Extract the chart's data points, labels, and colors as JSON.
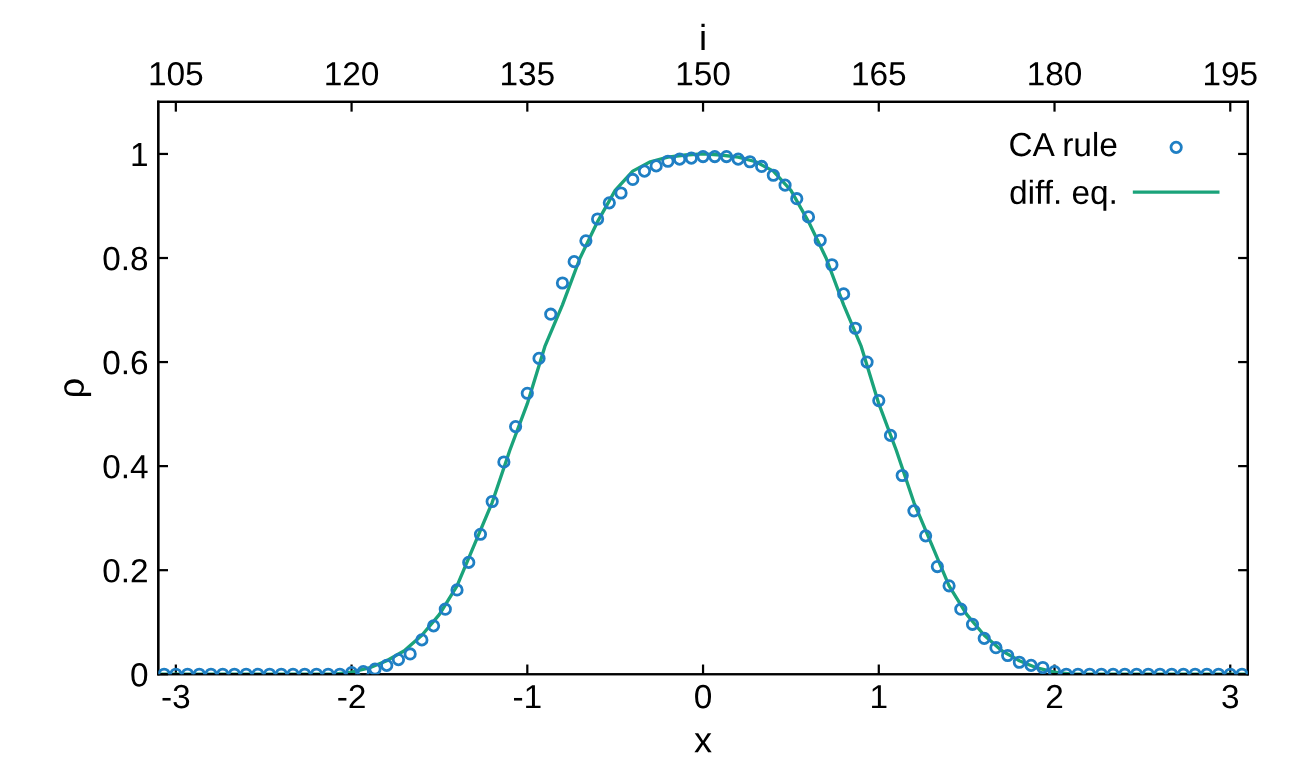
{
  "chart_data": {
    "type": "scatter",
    "xlabel": "x",
    "ylabel": "ρ",
    "x2label": "i",
    "xlim": [
      -3.1,
      3.1
    ],
    "xticks": [
      -3,
      -2,
      -1,
      0,
      1,
      2,
      3
    ],
    "x2lim": [
      103.5,
      196.5
    ],
    "x2ticks": [
      105,
      120,
      135,
      150,
      165,
      180,
      195
    ],
    "ylim": [
      0,
      1.1
    ],
    "yticks": [
      0,
      0.2,
      0.4,
      0.6,
      0.8,
      1
    ],
    "grid": false,
    "legend": "top right",
    "series": [
      {
        "name": "CA rule",
        "marker": "circle",
        "axis": "x2",
        "color": "#1f7fc4",
        "x": [
          104,
          105,
          106,
          107,
          108,
          109,
          110,
          111,
          112,
          113,
          114,
          115,
          116,
          117,
          118,
          119,
          120,
          121,
          122,
          123,
          124,
          125,
          126,
          127,
          128,
          129,
          130,
          131,
          132,
          133,
          134,
          135,
          136,
          137,
          138,
          139,
          140,
          141,
          142,
          143,
          144,
          145,
          146,
          147,
          148,
          149,
          150,
          151,
          152,
          153,
          154,
          155,
          156,
          157,
          158,
          159,
          160,
          161,
          162,
          163,
          164,
          165,
          166,
          167,
          168,
          169,
          170,
          171,
          172,
          173,
          174,
          175,
          176,
          177,
          178,
          179,
          180,
          181,
          182,
          183,
          184,
          185,
          186,
          187,
          188,
          189,
          190,
          191,
          192,
          193,
          194,
          195,
          196
        ],
        "values": [
          0,
          0,
          0,
          0,
          0,
          0,
          0,
          0,
          0,
          0,
          0,
          0,
          0,
          0,
          0,
          0,
          0.003,
          0.005,
          0.01,
          0.017,
          0.028,
          0.039,
          0.066,
          0.093,
          0.125,
          0.162,
          0.215,
          0.269,
          0.332,
          0.408,
          0.476,
          0.54,
          0.607,
          0.692,
          0.752,
          0.793,
          0.833,
          0.875,
          0.906,
          0.925,
          0.951,
          0.967,
          0.977,
          0.986,
          0.99,
          0.992,
          0.995,
          0.995,
          0.995,
          0.99,
          0.985,
          0.976,
          0.959,
          0.94,
          0.914,
          0.879,
          0.834,
          0.787,
          0.731,
          0.665,
          0.6,
          0.526,
          0.459,
          0.382,
          0.314,
          0.266,
          0.207,
          0.17,
          0.125,
          0.096,
          0.069,
          0.051,
          0.036,
          0.023,
          0.017,
          0.013,
          0.005,
          0,
          0,
          0,
          0,
          0,
          0,
          0,
          0,
          0,
          0,
          0,
          0,
          0,
          0,
          0,
          0
        ]
      },
      {
        "name": "diff. eq.",
        "type": "line",
        "marker": "none",
        "line_style": "solid",
        "color": "#1aa37a",
        "x": [
          -3.1,
          -2.5,
          -2.1,
          -2.0,
          -1.9,
          -1.8,
          -1.7,
          -1.6,
          -1.5,
          -1.4,
          -1.3,
          -1.2,
          -1.1,
          -1.0,
          -0.9,
          -0.8,
          -0.7,
          -0.6,
          -0.5,
          -0.4,
          -0.3,
          -0.2,
          -0.1,
          0,
          0.1,
          0.2,
          0.3,
          0.4,
          0.5,
          0.6,
          0.7,
          0.8,
          0.9,
          1.0,
          1.1,
          1.2,
          1.3,
          1.4,
          1.5,
          1.6,
          1.7,
          1.8,
          1.9,
          2.0,
          2.1,
          2.5,
          3.1
        ],
        "values": [
          0,
          0,
          0,
          0.004,
          0.012,
          0.026,
          0.045,
          0.075,
          0.115,
          0.17,
          0.25,
          0.33,
          0.43,
          0.52,
          0.63,
          0.71,
          0.8,
          0.87,
          0.93,
          0.967,
          0.985,
          0.994,
          0.998,
          1.0,
          0.998,
          0.994,
          0.985,
          0.967,
          0.93,
          0.87,
          0.8,
          0.71,
          0.63,
          0.52,
          0.43,
          0.33,
          0.25,
          0.17,
          0.115,
          0.075,
          0.045,
          0.026,
          0.012,
          0.004,
          0,
          0,
          0
        ]
      }
    ]
  }
}
